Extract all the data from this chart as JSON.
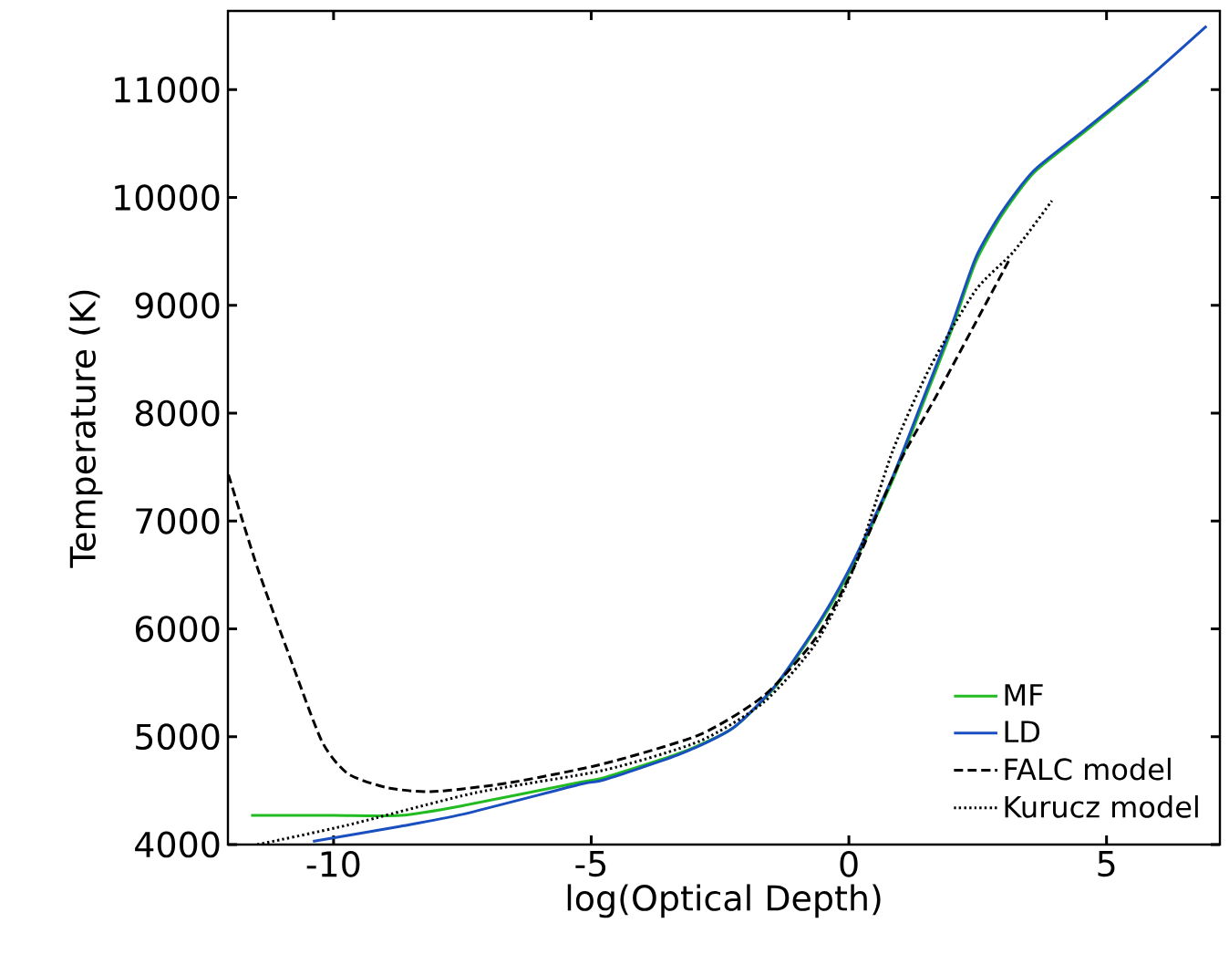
{
  "chart_data": {
    "type": "line",
    "xlabel": "log(Optical Depth)",
    "ylabel": "Temperature (K)",
    "xlim": [
      -12.05,
      7.2
    ],
    "ylim": [
      4000,
      11730
    ],
    "xticks": [
      -10,
      -5,
      0,
      5
    ],
    "yticks": [
      4000,
      5000,
      6000,
      7000,
      8000,
      9000,
      10000,
      11000
    ],
    "grid": false,
    "legend": "bottom right",
    "marker": "none",
    "series": [
      {
        "name": "MF",
        "color": "#22bb22",
        "line_style": "solid",
        "x": [
          -11.6,
          -10,
          -8.7,
          -7.5,
          -5.2,
          -4.75,
          -3.27,
          -2.25,
          -1.4,
          -0.53,
          0.1,
          0.85,
          1.48,
          1.97,
          2.46,
          2.96,
          3.59,
          4.58,
          5.81
        ],
        "values": [
          4270,
          4270,
          4270,
          4360,
          4580,
          4620,
          4850,
          5080,
          5480,
          6080,
          6610,
          7380,
          8140,
          8740,
          9400,
          9830,
          10230,
          10610,
          11090
        ]
      },
      {
        "name": "LD",
        "color": "#1a4fc0",
        "line_style": "solid",
        "x": [
          -10.4,
          -8.7,
          -7.5,
          -5.2,
          -4.75,
          -3.27,
          -2.25,
          -1.4,
          -0.53,
          0.1,
          0.85,
          1.48,
          1.97,
          2.46,
          2.96,
          3.59,
          4.58,
          5.81,
          6.94
        ],
        "values": [
          4030,
          4170,
          4280,
          4560,
          4600,
          4840,
          5080,
          5490,
          6100,
          6640,
          7410,
          8180,
          8780,
          9440,
          9860,
          10250,
          10630,
          11110,
          11590
        ]
      },
      {
        "name": "FALC model",
        "color": "#000000",
        "line_style": "dashed",
        "x": [
          -12.04,
          -11.48,
          -10.85,
          -10.23,
          -9.73,
          -8.98,
          -8.11,
          -6.62,
          -4.75,
          -2.89,
          -1.65,
          -0.65,
          0.1,
          0.97,
          1.72,
          2.46,
          3.1
        ],
        "values": [
          7430,
          6570,
          5740,
          4960,
          4660,
          4530,
          4490,
          4570,
          4750,
          5020,
          5380,
          5910,
          6570,
          7530,
          8180,
          8840,
          9410
        ]
      },
      {
        "name": "Kurucz model",
        "color": "#000000",
        "line_style": "dotted",
        "x": [
          -11.48,
          -9.73,
          -7.25,
          -4.75,
          -2.89,
          -1.65,
          -0.65,
          0.1,
          0.85,
          1.58,
          2.46,
          3.2,
          3.94
        ],
        "values": [
          4000,
          4180,
          4480,
          4690,
          4960,
          5320,
          5860,
          6570,
          7650,
          8430,
          9140,
          9500,
          9970
        ]
      }
    ]
  }
}
